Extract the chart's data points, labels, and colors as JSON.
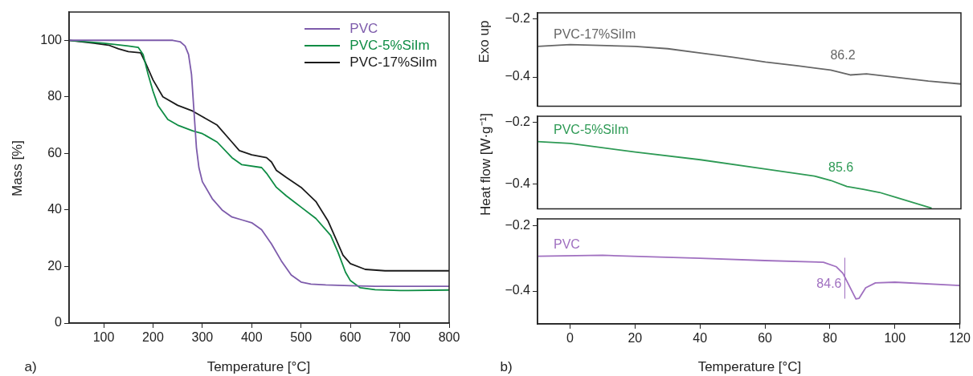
{
  "chart_data": [
    {
      "type": "line",
      "xlabel": "Temperature [°C]",
      "ylabel": "Mass [%]",
      "xlim": [
        30,
        800
      ],
      "xticks": [
        100,
        200,
        300,
        400,
        500,
        600,
        700,
        800
      ],
      "ylim": [
        0,
        110
      ],
      "yticks": [
        0,
        20,
        40,
        60,
        80,
        100
      ],
      "grid": false,
      "legend": "top right",
      "marker": "none",
      "annotations": [
        "a)"
      ],
      "series": [
        {
          "name": "PVC",
          "color": "#7d5bab",
          "x": [
            30,
            100,
            200,
            240,
            255,
            265,
            272,
            278,
            283,
            288,
            293,
            300,
            320,
            340,
            360,
            380,
            400,
            420,
            440,
            460,
            480,
            500,
            520,
            550,
            600,
            650,
            700,
            800
          ],
          "values": [
            100,
            100,
            100,
            100,
            99.5,
            98,
            95,
            88,
            75,
            62,
            55,
            50,
            44,
            40,
            37.5,
            36.5,
            35.5,
            33,
            28,
            22,
            17,
            14.5,
            13.8,
            13.5,
            13.2,
            13,
            13,
            13
          ]
        },
        {
          "name": "PVC-5%SiIm",
          "color": "#0e8c44",
          "x": [
            30,
            100,
            150,
            170,
            180,
            190,
            200,
            210,
            230,
            250,
            280,
            300,
            330,
            360,
            380,
            420,
            430,
            450,
            470,
            500,
            530,
            560,
            575,
            590,
            600,
            620,
            650,
            700,
            800
          ],
          "values": [
            100,
            99,
            98,
            97.5,
            95,
            88,
            82,
            77,
            72,
            70,
            68,
            67,
            64,
            58.5,
            56,
            55,
            53,
            48,
            45,
            41,
            37,
            31,
            25,
            18,
            15,
            12.5,
            11.8,
            11.5,
            11.7
          ]
        },
        {
          "name": "PVC-17%SiIm",
          "color": "#1a1a1a",
          "x": [
            30,
            80,
            110,
            130,
            150,
            175,
            185,
            200,
            220,
            250,
            280,
            300,
            330,
            360,
            375,
            400,
            430,
            440,
            450,
            470,
            500,
            530,
            555,
            570,
            585,
            600,
            630,
            670,
            800
          ],
          "values": [
            100,
            99,
            98.3,
            97,
            96,
            95.6,
            92,
            86,
            80,
            77,
            75,
            73,
            70,
            64,
            61,
            59.5,
            58.5,
            57,
            54,
            51.5,
            48,
            43,
            36,
            30,
            24,
            21,
            19,
            18.5,
            18.5
          ]
        }
      ]
    },
    {
      "type": "line",
      "ylabel": "Exo up",
      "xlim": [
        -10,
        120
      ],
      "xticks": [
        0,
        20,
        40,
        60,
        80,
        100,
        120
      ],
      "ylim": [
        -0.5,
        -0.18
      ],
      "yticks": [
        -0.2,
        -0.4
      ],
      "tick_labels": "y",
      "grid": false,
      "legend": false,
      "marker": "none",
      "annotations": [
        {
          "text": "86.2",
          "x": 86.2,
          "y": -0.393
        }
      ],
      "series": [
        {
          "name": "PVC-17%SiIm",
          "color": "#666666",
          "x": [
            -10,
            0,
            20,
            30,
            40,
            50,
            60,
            70,
            80,
            86,
            91,
            100,
            110,
            120
          ],
          "values": [
            -0.295,
            -0.289,
            -0.295,
            -0.303,
            -0.318,
            -0.332,
            -0.349,
            -0.362,
            -0.376,
            -0.393,
            -0.389,
            -0.401,
            -0.414,
            -0.424
          ]
        }
      ]
    },
    {
      "type": "line",
      "ylabel": "Heat flow [W·g⁻¹]",
      "xlim": [
        -10,
        120
      ],
      "xticks": [
        0,
        20,
        40,
        60,
        80,
        100,
        120
      ],
      "ylim": [
        -0.48,
        -0.18
      ],
      "yticks": [
        -0.2,
        -0.4
      ],
      "tick_labels": "y",
      "grid": false,
      "legend": false,
      "marker": "none",
      "annotations": [
        {
          "text": "85.6",
          "x": 85.6,
          "y": -0.41
        }
      ],
      "series": [
        {
          "name": "PVC-5%SiIm",
          "color": "#2e9a55",
          "x": [
            -10,
            0,
            20,
            40,
            60,
            75,
            80,
            85,
            90,
            95,
            100,
            111
          ],
          "values": [
            -0.262,
            -0.268,
            -0.296,
            -0.321,
            -0.351,
            -0.374,
            -0.388,
            -0.408,
            -0.417,
            -0.427,
            -0.443,
            -0.478
          ]
        }
      ]
    },
    {
      "type": "line",
      "xlabel": "Temperature [°C]",
      "xlim": [
        -10,
        120
      ],
      "xticks": [
        0,
        20,
        40,
        60,
        80,
        100,
        120
      ],
      "ylim": [
        -0.5,
        -0.18
      ],
      "yticks": [
        -0.2,
        -0.4
      ],
      "grid": false,
      "legend": false,
      "marker": "none",
      "annotations": [
        "b)"
      ],
      "ref_lines": [
        {
          "axis": "x",
          "value": 84.6,
          "label": "84.6",
          "color": "#a070c0"
        }
      ],
      "series": [
        {
          "name": "PVC",
          "color": "#a070c0",
          "x": [
            -10,
            10,
            40,
            60,
            78,
            82,
            84,
            86,
            88,
            89,
            91,
            94,
            100,
            120
          ],
          "values": [
            -0.294,
            -0.291,
            -0.3,
            -0.307,
            -0.312,
            -0.326,
            -0.346,
            -0.385,
            -0.424,
            -0.422,
            -0.39,
            -0.375,
            -0.373,
            -0.383
          ]
        }
      ]
    }
  ]
}
